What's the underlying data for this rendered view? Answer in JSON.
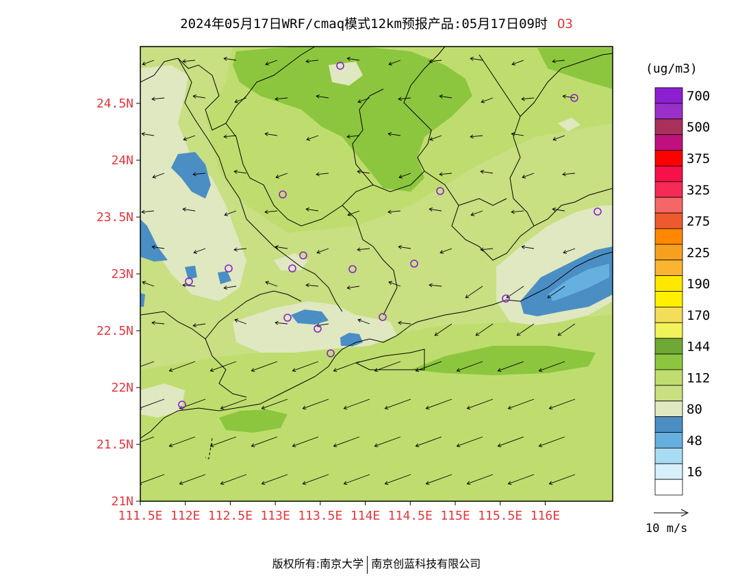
{
  "title": {
    "main": "2024年05月17日WRF/cmaq模式12km预报产品:05月17日09时",
    "pollutant": "O3"
  },
  "axes": {
    "lat_labels": [
      "24.5N",
      "24N",
      "23.5N",
      "23N",
      "22.5N",
      "22N",
      "21.5N",
      "21N"
    ],
    "lat_values": [
      24.5,
      24.0,
      23.5,
      23.0,
      22.5,
      22.0,
      21.5,
      21.0
    ],
    "lon_labels": [
      "111.5E",
      "112E",
      "112.5E",
      "113E",
      "113.5E",
      "114E",
      "114.5E",
      "115E",
      "115.5E",
      "116E"
    ],
    "lon_values": [
      111.5,
      112.0,
      112.5,
      113.0,
      113.5,
      114.0,
      114.5,
      115.0,
      115.5,
      116.0
    ],
    "lon_range": [
      111.5,
      116.75
    ],
    "lat_range": [
      21.0,
      25.0
    ],
    "label_color": "#e8343c"
  },
  "legend": {
    "unit": "(ug/m3)",
    "levels": [
      {
        "label": "700",
        "color": "#8b1fd1"
      },
      {
        "label": "",
        "color": "#9b2fc9"
      },
      {
        "label": "500",
        "color": "#a8305a"
      },
      {
        "label": "",
        "color": "#c01080"
      },
      {
        "label": "375",
        "color": "#ff0000"
      },
      {
        "label": "",
        "color": "#f8104a"
      },
      {
        "label": "325",
        "color": "#f52a55"
      },
      {
        "label": "",
        "color": "#f56666"
      },
      {
        "label": "275",
        "color": "#ee5a2d"
      },
      {
        "label": "",
        "color": "#ff8800"
      },
      {
        "label": "225",
        "color": "#f7a020"
      },
      {
        "label": "",
        "color": "#fbb432"
      },
      {
        "label": "190",
        "color": "#ffe800"
      },
      {
        "label": "",
        "color": "#fff000"
      },
      {
        "label": "170",
        "color": "#f4dd5a"
      },
      {
        "label": "",
        "color": "#f2f25a"
      },
      {
        "label": "144",
        "color": "#6fa834"
      },
      {
        "label": "",
        "color": "#8cc63f"
      },
      {
        "label": "112",
        "color": "#bfdd6e"
      },
      {
        "label": "",
        "color": "#c8df82"
      },
      {
        "label": "80",
        "color": "#dfe8c0"
      },
      {
        "label": "",
        "color": "#4a8ec4"
      },
      {
        "label": "48",
        "color": "#66b0e0"
      },
      {
        "label": "",
        "color": "#a8dcf5"
      },
      {
        "label": "16",
        "color": "#d8f0fa"
      },
      {
        "label": "",
        "color": "#ffffff"
      }
    ]
  },
  "wind_vector": {
    "label": "10 m/s"
  },
  "footer": {
    "left": "版权所有:南京大学",
    "right": "南京创蓝科技有限公司"
  },
  "colors": {
    "base_field": "#c8df82",
    "green": "#8cc63f",
    "light": "#dfe8c0",
    "blue": "#4a8ec4",
    "station": "#8b1fd1",
    "boundary": "#000000"
  }
}
